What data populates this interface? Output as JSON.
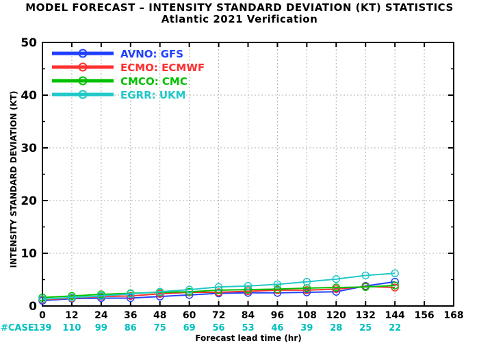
{
  "header": {
    "title": "MODEL FORECAST – INTENSITY STANDARD DEVIATION (KT) STATISTICS",
    "subtitle": "Atlantic 2021 Verification"
  },
  "colors": {
    "axis": "#000000",
    "grid": "#b0b0b0",
    "case_text": "#00c0c0"
  },
  "chart_data": {
    "type": "line",
    "title": "MODEL FORECAST – INTENSITY STANDARD DEVIATION (KT) STATISTICS",
    "subtitle": "Atlantic 2021 Verification",
    "xlabel": "Forecast lead time (hr)",
    "ylabel": "INTENSITY STANDARD DEVIATION (KT)",
    "xlim": [
      0,
      168
    ],
    "ylim": [
      0,
      50
    ],
    "x_ticks": [
      0,
      12,
      24,
      36,
      48,
      60,
      72,
      84,
      96,
      108,
      120,
      132,
      144,
      156,
      168
    ],
    "y_ticks": [
      0,
      10,
      20,
      30,
      40,
      50
    ],
    "grid": true,
    "legend_position": "top-left",
    "x": [
      0,
      12,
      24,
      36,
      48,
      60,
      72,
      84,
      96,
      108,
      120,
      132,
      144
    ],
    "series": [
      {
        "name": "AVNO:  GFS",
        "color": "#2040ff",
        "values": [
          1.0,
          1.4,
          1.5,
          1.5,
          1.8,
          2.1,
          2.4,
          2.5,
          2.5,
          2.6,
          2.7,
          3.8,
          4.6
        ]
      },
      {
        "name": "ECMO:  ECMWF",
        "color": "#ff3030",
        "values": [
          1.2,
          1.5,
          1.8,
          1.9,
          2.3,
          2.6,
          2.6,
          2.8,
          3.0,
          3.0,
          3.2,
          3.7,
          3.5
        ]
      },
      {
        "name": "CMCO:  CMC",
        "color": "#00c000",
        "values": [
          1.6,
          1.9,
          2.2,
          2.4,
          2.6,
          2.7,
          3.0,
          3.1,
          3.2,
          3.4,
          3.5,
          3.6,
          3.9
        ]
      },
      {
        "name": "EGRR:  UKM",
        "color": "#20c8c8",
        "values": [
          1.3,
          1.6,
          1.9,
          2.3,
          2.7,
          3.1,
          3.6,
          3.8,
          4.1,
          4.6,
          5.1,
          5.8,
          6.2
        ]
      }
    ],
    "case_label": "#CASE",
    "cases": [
      "139",
      "110",
      "99",
      "86",
      "75",
      "69",
      "56",
      "53",
      "46",
      "39",
      "28",
      "25",
      "22"
    ]
  }
}
